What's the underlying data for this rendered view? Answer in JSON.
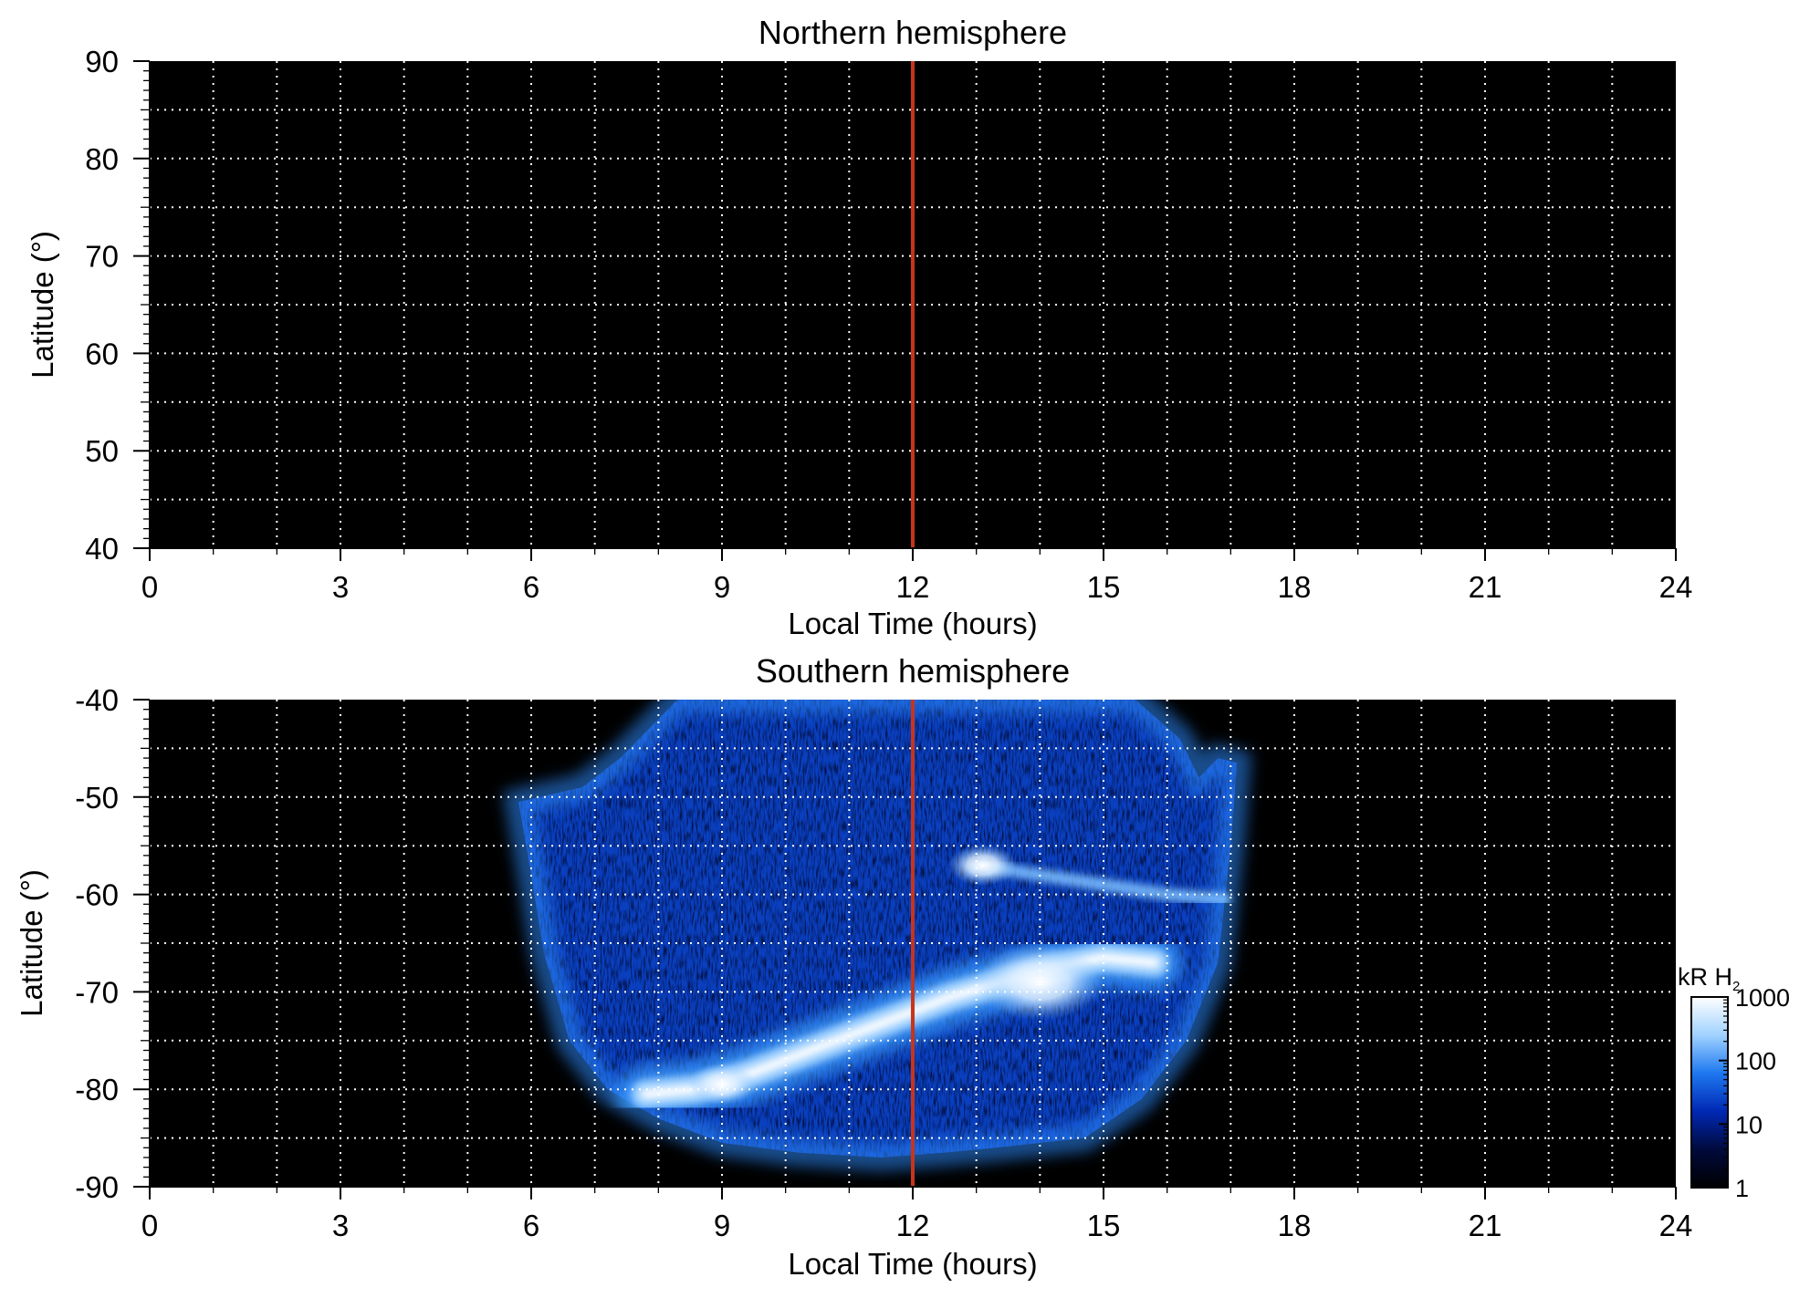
{
  "chart_data": [
    {
      "type": "heatmap",
      "title": "Northern hemisphere",
      "xlabel": "Local Time (hours)",
      "ylabel": "Latitude (°)",
      "xlim": [
        0,
        24
      ],
      "ylim": [
        40,
        90
      ],
      "xticks": [
        "0",
        "3",
        "6",
        "9",
        "12",
        "15",
        "18",
        "21",
        "24"
      ],
      "yticks": [
        "40",
        "50",
        "60",
        "70",
        "80",
        "90"
      ],
      "x_tick_values": [
        0,
        3,
        6,
        9,
        12,
        15,
        18,
        21,
        24
      ],
      "y_tick_values": [
        40,
        50,
        60,
        70,
        80,
        90
      ],
      "grid": "dotted white, every 1 h and every 5°",
      "background": "#000000",
      "marker_line": {
        "x": 12,
        "color": "#c8341b"
      },
      "emission": "none"
    },
    {
      "type": "heatmap",
      "title": "Southern hemisphere",
      "xlabel": "Local Time (hours)",
      "ylabel": "Latitude (°)",
      "xlim": [
        0,
        24
      ],
      "ylim": [
        -90,
        -40
      ],
      "xticks": [
        "0",
        "3",
        "6",
        "9",
        "12",
        "15",
        "18",
        "21",
        "24"
      ],
      "yticks": [
        "-40",
        "-50",
        "-60",
        "-70",
        "-80",
        "-90"
      ],
      "x_tick_values": [
        0,
        3,
        6,
        9,
        12,
        15,
        18,
        21,
        24
      ],
      "y_tick_values": [
        -40,
        -50,
        -60,
        -70,
        -80,
        -90
      ],
      "grid": "dotted white, every 1 h and every 5°",
      "background": "#000000",
      "marker_line": {
        "x": 12,
        "color": "#c8341b"
      },
      "coverage_boundary": [
        [
          5.8,
          -50.5
        ],
        [
          6.8,
          -49
        ],
        [
          7.4,
          -46
        ],
        [
          8.0,
          -42
        ],
        [
          8.3,
          -40
        ],
        [
          15.5,
          -40
        ],
        [
          16.2,
          -44
        ],
        [
          16.5,
          -48
        ],
        [
          16.8,
          -46
        ],
        [
          17.1,
          -46.5
        ],
        [
          17.0,
          -55
        ],
        [
          16.8,
          -67
        ],
        [
          16.3,
          -75
        ],
        [
          15.6,
          -81
        ],
        [
          14.7,
          -85
        ],
        [
          13.3,
          -86
        ],
        [
          12.5,
          -86.5
        ],
        [
          11.5,
          -87
        ],
        [
          10.2,
          -86.5
        ],
        [
          9.0,
          -85.5
        ],
        [
          8.0,
          -83
        ],
        [
          7.2,
          -80
        ],
        [
          6.6,
          -75
        ],
        [
          6.2,
          -66
        ],
        [
          6.0,
          -58
        ],
        [
          5.8,
          -50.5
        ]
      ],
      "bright_oval": [
        [
          7.8,
          -80.5
        ],
        [
          8.6,
          -80
        ],
        [
          9.4,
          -78.5
        ],
        [
          10.2,
          -76.5
        ],
        [
          11.0,
          -74.5
        ],
        [
          11.8,
          -72.5
        ],
        [
          12.6,
          -70.5
        ],
        [
          13.4,
          -69
        ],
        [
          14.2,
          -67.5
        ],
        [
          15.0,
          -66.5
        ],
        [
          15.8,
          -67
        ]
      ],
      "bright_spots": [
        {
          "x": 13.1,
          "y": -57,
          "kR": 1000
        },
        {
          "x": 14.0,
          "y": -69,
          "kR": 1000
        },
        {
          "x": 9.0,
          "y": -79.5,
          "kR": 1000
        }
      ],
      "secondary_arc": [
        [
          13.0,
          -57
        ],
        [
          14.5,
          -58.5
        ],
        [
          16.0,
          -60
        ],
        [
          16.9,
          -60.5
        ]
      ]
    }
  ],
  "colorbar": {
    "label": "kR H",
    "label_subscript": "2",
    "scale": "log",
    "ticks": [
      "1",
      "10",
      "100",
      "1000"
    ],
    "tick_values": [
      1,
      10,
      100,
      1000
    ],
    "colors": [
      "#000000",
      "#000a3c",
      "#0028b4",
      "#1e78f0",
      "#a0d2ff",
      "#ffffff"
    ]
  }
}
